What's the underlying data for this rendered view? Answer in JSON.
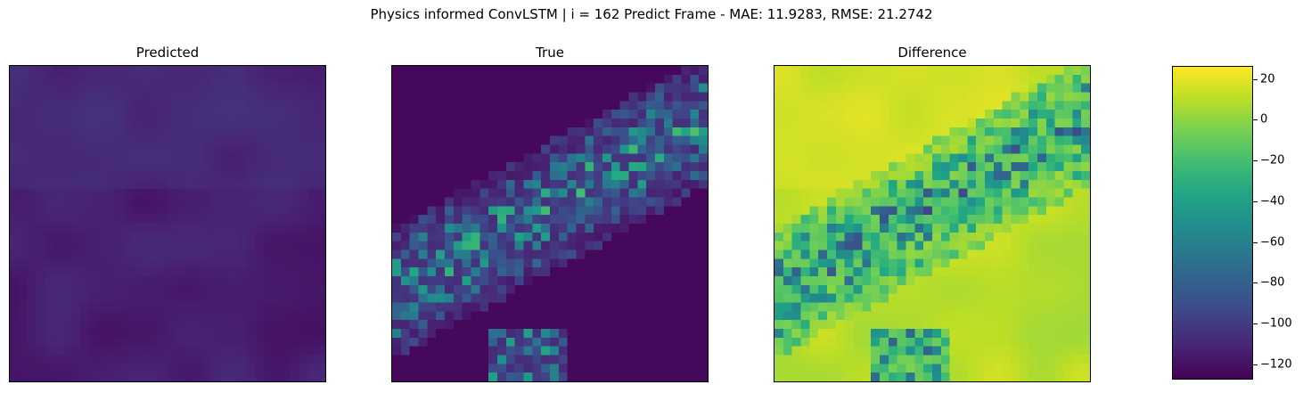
{
  "figure": {
    "suptitle": "Physics informed ConvLSTM | i = 162 Predict Frame - MAE: 11.9283, RMSE: 21.2742"
  },
  "chart_data": [
    {
      "type": "heatmap",
      "title": "Predicted",
      "colormap": "viridis",
      "grid_size": [
        36,
        36
      ],
      "value_range": [
        -125,
        25
      ],
      "description_of_field": "smooth low-valued field; values ~-112 to -122 (dark purple) with slightly higher (~-105) band in upper-left and middle",
      "xticks": [],
      "yticks": []
    },
    {
      "type": "heatmap",
      "title": "True",
      "colormap": "viridis",
      "grid_size": [
        36,
        36
      ],
      "value_range": [
        -125,
        25
      ],
      "description_of_field": "mostly dark purple background (~-122) with a diagonal band of speckled higher values (~-90 to -40) running from upper-middle to lower-left, plus a patch near the bottom center",
      "xticks": [],
      "yticks": []
    },
    {
      "type": "heatmap",
      "title": "Difference",
      "colormap": "viridis",
      "grid_size": [
        36,
        36
      ],
      "value_range": [
        -125,
        25
      ],
      "description_of_field": "mostly green-yellow (~0 to 20) with a diagonal band of blue/teal/dark purple negative values (~-40 to -120) mirroring the True field structure",
      "xticks": [],
      "yticks": []
    }
  ],
  "colorbar": {
    "colormap": "viridis",
    "min": -127,
    "max": 26,
    "ticks": [
      20,
      0,
      -20,
      -40,
      -60,
      -80,
      -100,
      -120
    ],
    "tick_labels": [
      "20",
      "0",
      "−20",
      "−40",
      "−60",
      "−80",
      "−100",
      "−120"
    ]
  }
}
